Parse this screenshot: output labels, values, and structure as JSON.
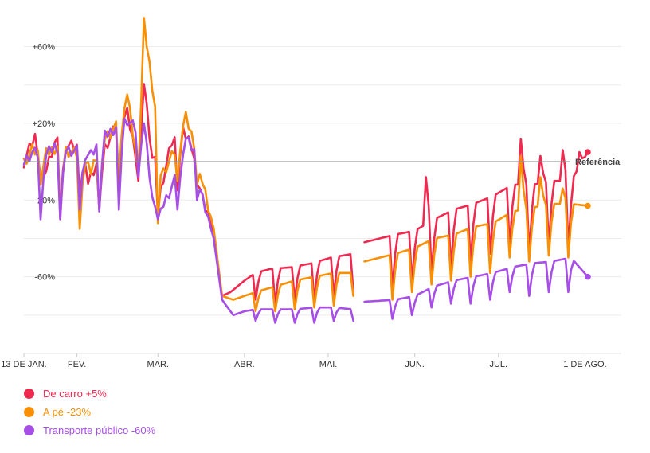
{
  "chart_data": {
    "type": "line",
    "title": "",
    "xlabel": "",
    "ylabel": "",
    "ylim": [
      -100,
      76
    ],
    "y_ticks": [
      {
        "value": 60,
        "label": "+60%"
      },
      {
        "value": 20,
        "label": "+20%"
      },
      {
        "value": -20,
        "label": "-20%"
      },
      {
        "value": -60,
        "label": "-60%"
      }
    ],
    "gridlines": [
      60,
      40,
      20,
      -20,
      -40,
      -60,
      -80
    ],
    "grid": true,
    "x_range": [
      "2020-01-13",
      "2020-08-14"
    ],
    "x_ticks": [
      {
        "date": "2020-01-13",
        "label": "13 DE JAN."
      },
      {
        "date": "2020-02-01",
        "label": "FEV."
      },
      {
        "date": "2020-03-01",
        "label": "MAR."
      },
      {
        "date": "2020-04-01",
        "label": "ABR."
      },
      {
        "date": "2020-05-01",
        "label": "MAI."
      },
      {
        "date": "2020-06-01",
        "label": "JUN."
      },
      {
        "date": "2020-07-01",
        "label": "JUL."
      },
      {
        "date": "2020-08-01",
        "label": "1 DE AGO."
      }
    ],
    "baseline": {
      "value": 0,
      "label": "Referência"
    },
    "gap": [
      "2020-05-11",
      "2020-05-13"
    ],
    "end_date": "2020-08-02",
    "legend_position": "bottom-left",
    "series": [
      {
        "name": "De carro",
        "legend_value": "+5%",
        "color": "#ee2a50",
        "end_value": 5,
        "keypoints": [
          [
            "2020-01-13",
            0
          ],
          [
            "2020-01-17",
            13
          ],
          [
            "2020-01-20",
            -8
          ],
          [
            "2020-01-24",
            10
          ],
          [
            "2020-02-02",
            7
          ],
          [
            "2020-02-05",
            -10
          ],
          [
            "2020-02-10",
            5
          ],
          [
            "2020-02-15",
            18
          ],
          [
            "2020-02-19",
            25
          ],
          [
            "2020-02-22",
            5
          ],
          [
            "2020-02-25",
            42
          ],
          [
            "2020-02-28",
            2
          ],
          [
            "2020-03-03",
            -8
          ],
          [
            "2020-03-06",
            10
          ],
          [
            "2020-03-10",
            15
          ],
          [
            "2020-03-13",
            10
          ],
          [
            "2020-03-16",
            -15
          ],
          [
            "2020-03-20",
            -30
          ],
          [
            "2020-03-24",
            -70
          ],
          [
            "2020-03-27",
            -68
          ],
          [
            "2020-04-01",
            -62
          ],
          [
            "2020-04-05",
            -58
          ],
          [
            "2020-04-10",
            -56
          ],
          [
            "2020-04-18",
            -55
          ],
          [
            "2020-04-25",
            -53
          ],
          [
            "2020-05-02",
            -50
          ],
          [
            "2020-05-10",
            -48
          ],
          [
            "2020-05-14",
            -42
          ],
          [
            "2020-05-25",
            -38
          ],
          [
            "2020-06-01",
            -36
          ],
          [
            "2020-06-08",
            -30
          ],
          [
            "2020-06-15",
            -25
          ],
          [
            "2020-06-22",
            -22
          ],
          [
            "2020-06-29",
            -18
          ],
          [
            "2020-07-06",
            -12
          ],
          [
            "2020-07-13",
            -12
          ],
          [
            "2020-07-20",
            -10
          ],
          [
            "2020-07-27",
            -10
          ],
          [
            "2020-07-31",
            0
          ],
          [
            "2020-08-02",
            5
          ]
        ],
        "troughs": [
          [
            "2020-01-19",
            -8
          ],
          [
            "2020-01-26",
            -28
          ],
          [
            "2020-02-02",
            -18
          ],
          [
            "2020-02-09",
            -25
          ],
          [
            "2020-02-16",
            -12
          ],
          [
            "2020-02-23",
            -10
          ],
          [
            "2020-03-01",
            -28
          ],
          [
            "2020-03-08",
            -15
          ],
          [
            "2020-03-15",
            -12
          ],
          [
            "2020-04-05",
            -72
          ],
          [
            "2020-04-12",
            -74
          ],
          [
            "2020-04-19",
            -72
          ],
          [
            "2020-04-26",
            -72
          ],
          [
            "2020-05-03",
            -70
          ],
          [
            "2020-05-10",
            -68
          ],
          [
            "2020-05-24",
            -66
          ],
          [
            "2020-05-31",
            -62
          ],
          [
            "2020-06-07",
            -58
          ],
          [
            "2020-06-14",
            -55
          ],
          [
            "2020-06-21",
            -52
          ],
          [
            "2020-06-28",
            -48
          ],
          [
            "2020-07-05",
            -44
          ],
          [
            "2020-07-12",
            -48
          ],
          [
            "2020-07-19",
            -44
          ],
          [
            "2020-07-26",
            -45
          ]
        ],
        "spikes": [
          [
            "2020-06-05",
            -8
          ],
          [
            "2020-07-09",
            12
          ],
          [
            "2020-07-16",
            3
          ],
          [
            "2020-07-24",
            6
          ],
          [
            "2020-07-30",
            5
          ]
        ]
      },
      {
        "name": "A pé",
        "legend_value": "-23%",
        "color": "#f79007",
        "end_value": -23,
        "keypoints": [
          [
            "2020-01-13",
            0
          ],
          [
            "2020-01-16",
            6
          ],
          [
            "2020-01-20",
            3
          ],
          [
            "2020-01-25",
            8
          ],
          [
            "2020-02-02",
            3
          ],
          [
            "2020-02-06",
            -5
          ],
          [
            "2020-02-10",
            12
          ],
          [
            "2020-02-15",
            18
          ],
          [
            "2020-02-19",
            35
          ],
          [
            "2020-02-22",
            5
          ],
          [
            "2020-02-25",
            72
          ],
          [
            "2020-02-28",
            40
          ],
          [
            "2020-03-03",
            -5
          ],
          [
            "2020-03-07",
            5
          ],
          [
            "2020-03-11",
            23
          ],
          [
            "2020-03-14",
            10
          ],
          [
            "2020-03-17",
            -10
          ],
          [
            "2020-03-21",
            -35
          ],
          [
            "2020-03-24",
            -70
          ],
          [
            "2020-03-28",
            -72
          ],
          [
            "2020-04-01",
            -70
          ],
          [
            "2020-04-05",
            -68
          ],
          [
            "2020-04-12",
            -65
          ],
          [
            "2020-04-19",
            -62
          ],
          [
            "2020-04-26",
            -60
          ],
          [
            "2020-05-03",
            -58
          ],
          [
            "2020-05-10",
            -58
          ],
          [
            "2020-05-14",
            -52
          ],
          [
            "2020-05-25",
            -48
          ],
          [
            "2020-06-01",
            -45
          ],
          [
            "2020-06-08",
            -40
          ],
          [
            "2020-06-15",
            -38
          ],
          [
            "2020-06-22",
            -34
          ],
          [
            "2020-06-29",
            -32
          ],
          [
            "2020-07-06",
            -26
          ],
          [
            "2020-07-13",
            -24
          ],
          [
            "2020-07-20",
            -22
          ],
          [
            "2020-07-27",
            -22
          ],
          [
            "2020-08-02",
            -23
          ]
        ],
        "troughs": [
          [
            "2020-01-19",
            -12
          ],
          [
            "2020-01-26",
            -30
          ],
          [
            "2020-02-02",
            -35
          ],
          [
            "2020-02-09",
            -25
          ],
          [
            "2020-02-16",
            -10
          ],
          [
            "2020-02-23",
            -5
          ],
          [
            "2020-03-01",
            -32
          ],
          [
            "2020-03-08",
            -10
          ],
          [
            "2020-03-15",
            -12
          ],
          [
            "2020-04-05",
            -78
          ],
          [
            "2020-04-12",
            -78
          ],
          [
            "2020-04-19",
            -77
          ],
          [
            "2020-04-26",
            -76
          ],
          [
            "2020-05-03",
            -75
          ],
          [
            "2020-05-10",
            -70
          ],
          [
            "2020-05-24",
            -72
          ],
          [
            "2020-05-31",
            -68
          ],
          [
            "2020-06-07",
            -64
          ],
          [
            "2020-06-14",
            -62
          ],
          [
            "2020-06-21",
            -60
          ],
          [
            "2020-06-28",
            -58
          ],
          [
            "2020-07-05",
            -50
          ],
          [
            "2020-07-12",
            -52
          ],
          [
            "2020-07-19",
            -49
          ],
          [
            "2020-07-26",
            -50
          ]
        ],
        "spikes": [
          [
            "2020-07-09",
            3
          ],
          [
            "2020-07-16",
            -8
          ],
          [
            "2020-07-24",
            -14
          ]
        ]
      },
      {
        "name": "Transporte público",
        "legend_value": "-60%",
        "color": "#a64ee6",
        "end_value": -60,
        "keypoints": [
          [
            "2020-01-13",
            0
          ],
          [
            "2020-01-16",
            5
          ],
          [
            "2020-01-20",
            2
          ],
          [
            "2020-01-24",
            8
          ],
          [
            "2020-02-02",
            5
          ],
          [
            "2020-02-06",
            3
          ],
          [
            "2020-02-10",
            12
          ],
          [
            "2020-02-15",
            18
          ],
          [
            "2020-02-19",
            22
          ],
          [
            "2020-02-23",
            15
          ],
          [
            "2020-02-25",
            20
          ],
          [
            "2020-02-28",
            -20
          ],
          [
            "2020-03-03",
            -22
          ],
          [
            "2020-03-07",
            -10
          ],
          [
            "2020-03-11",
            12
          ],
          [
            "2020-03-14",
            5
          ],
          [
            "2020-03-17",
            -20
          ],
          [
            "2020-03-21",
            -40
          ],
          [
            "2020-03-24",
            -72
          ],
          [
            "2020-03-28",
            -80
          ],
          [
            "2020-04-01",
            -78
          ],
          [
            "2020-04-05",
            -77
          ],
          [
            "2020-04-12",
            -77
          ],
          [
            "2020-04-19",
            -77
          ],
          [
            "2020-04-26",
            -76
          ],
          [
            "2020-05-03",
            -76
          ],
          [
            "2020-05-10",
            -77
          ],
          [
            "2020-05-14",
            -73
          ],
          [
            "2020-05-25",
            -72
          ],
          [
            "2020-06-01",
            -70
          ],
          [
            "2020-06-08",
            -65
          ],
          [
            "2020-06-15",
            -62
          ],
          [
            "2020-06-22",
            -60
          ],
          [
            "2020-06-29",
            -58
          ],
          [
            "2020-07-06",
            -55
          ],
          [
            "2020-07-13",
            -53
          ],
          [
            "2020-07-20",
            -52
          ],
          [
            "2020-07-27",
            -50
          ],
          [
            "2020-08-02",
            -60
          ]
        ],
        "troughs": [
          [
            "2020-01-19",
            -30
          ],
          [
            "2020-01-26",
            -30
          ],
          [
            "2020-02-02",
            -25
          ],
          [
            "2020-02-09",
            -26
          ],
          [
            "2020-02-16",
            -25
          ],
          [
            "2020-02-23",
            -8
          ],
          [
            "2020-03-01",
            -30
          ],
          [
            "2020-03-08",
            -25
          ],
          [
            "2020-03-15",
            -20
          ],
          [
            "2020-04-05",
            -83
          ],
          [
            "2020-04-12",
            -84
          ],
          [
            "2020-04-19",
            -84
          ],
          [
            "2020-04-26",
            -84
          ],
          [
            "2020-05-03",
            -83
          ],
          [
            "2020-05-10",
            -83
          ],
          [
            "2020-05-24",
            -82
          ],
          [
            "2020-05-31",
            -80
          ],
          [
            "2020-06-07",
            -76
          ],
          [
            "2020-06-14",
            -74
          ],
          [
            "2020-06-21",
            -74
          ],
          [
            "2020-06-28",
            -72
          ],
          [
            "2020-07-05",
            -68
          ],
          [
            "2020-07-12",
            -70
          ],
          [
            "2020-07-19",
            -68
          ],
          [
            "2020-07-26",
            -68
          ]
        ],
        "spikes": []
      }
    ]
  }
}
